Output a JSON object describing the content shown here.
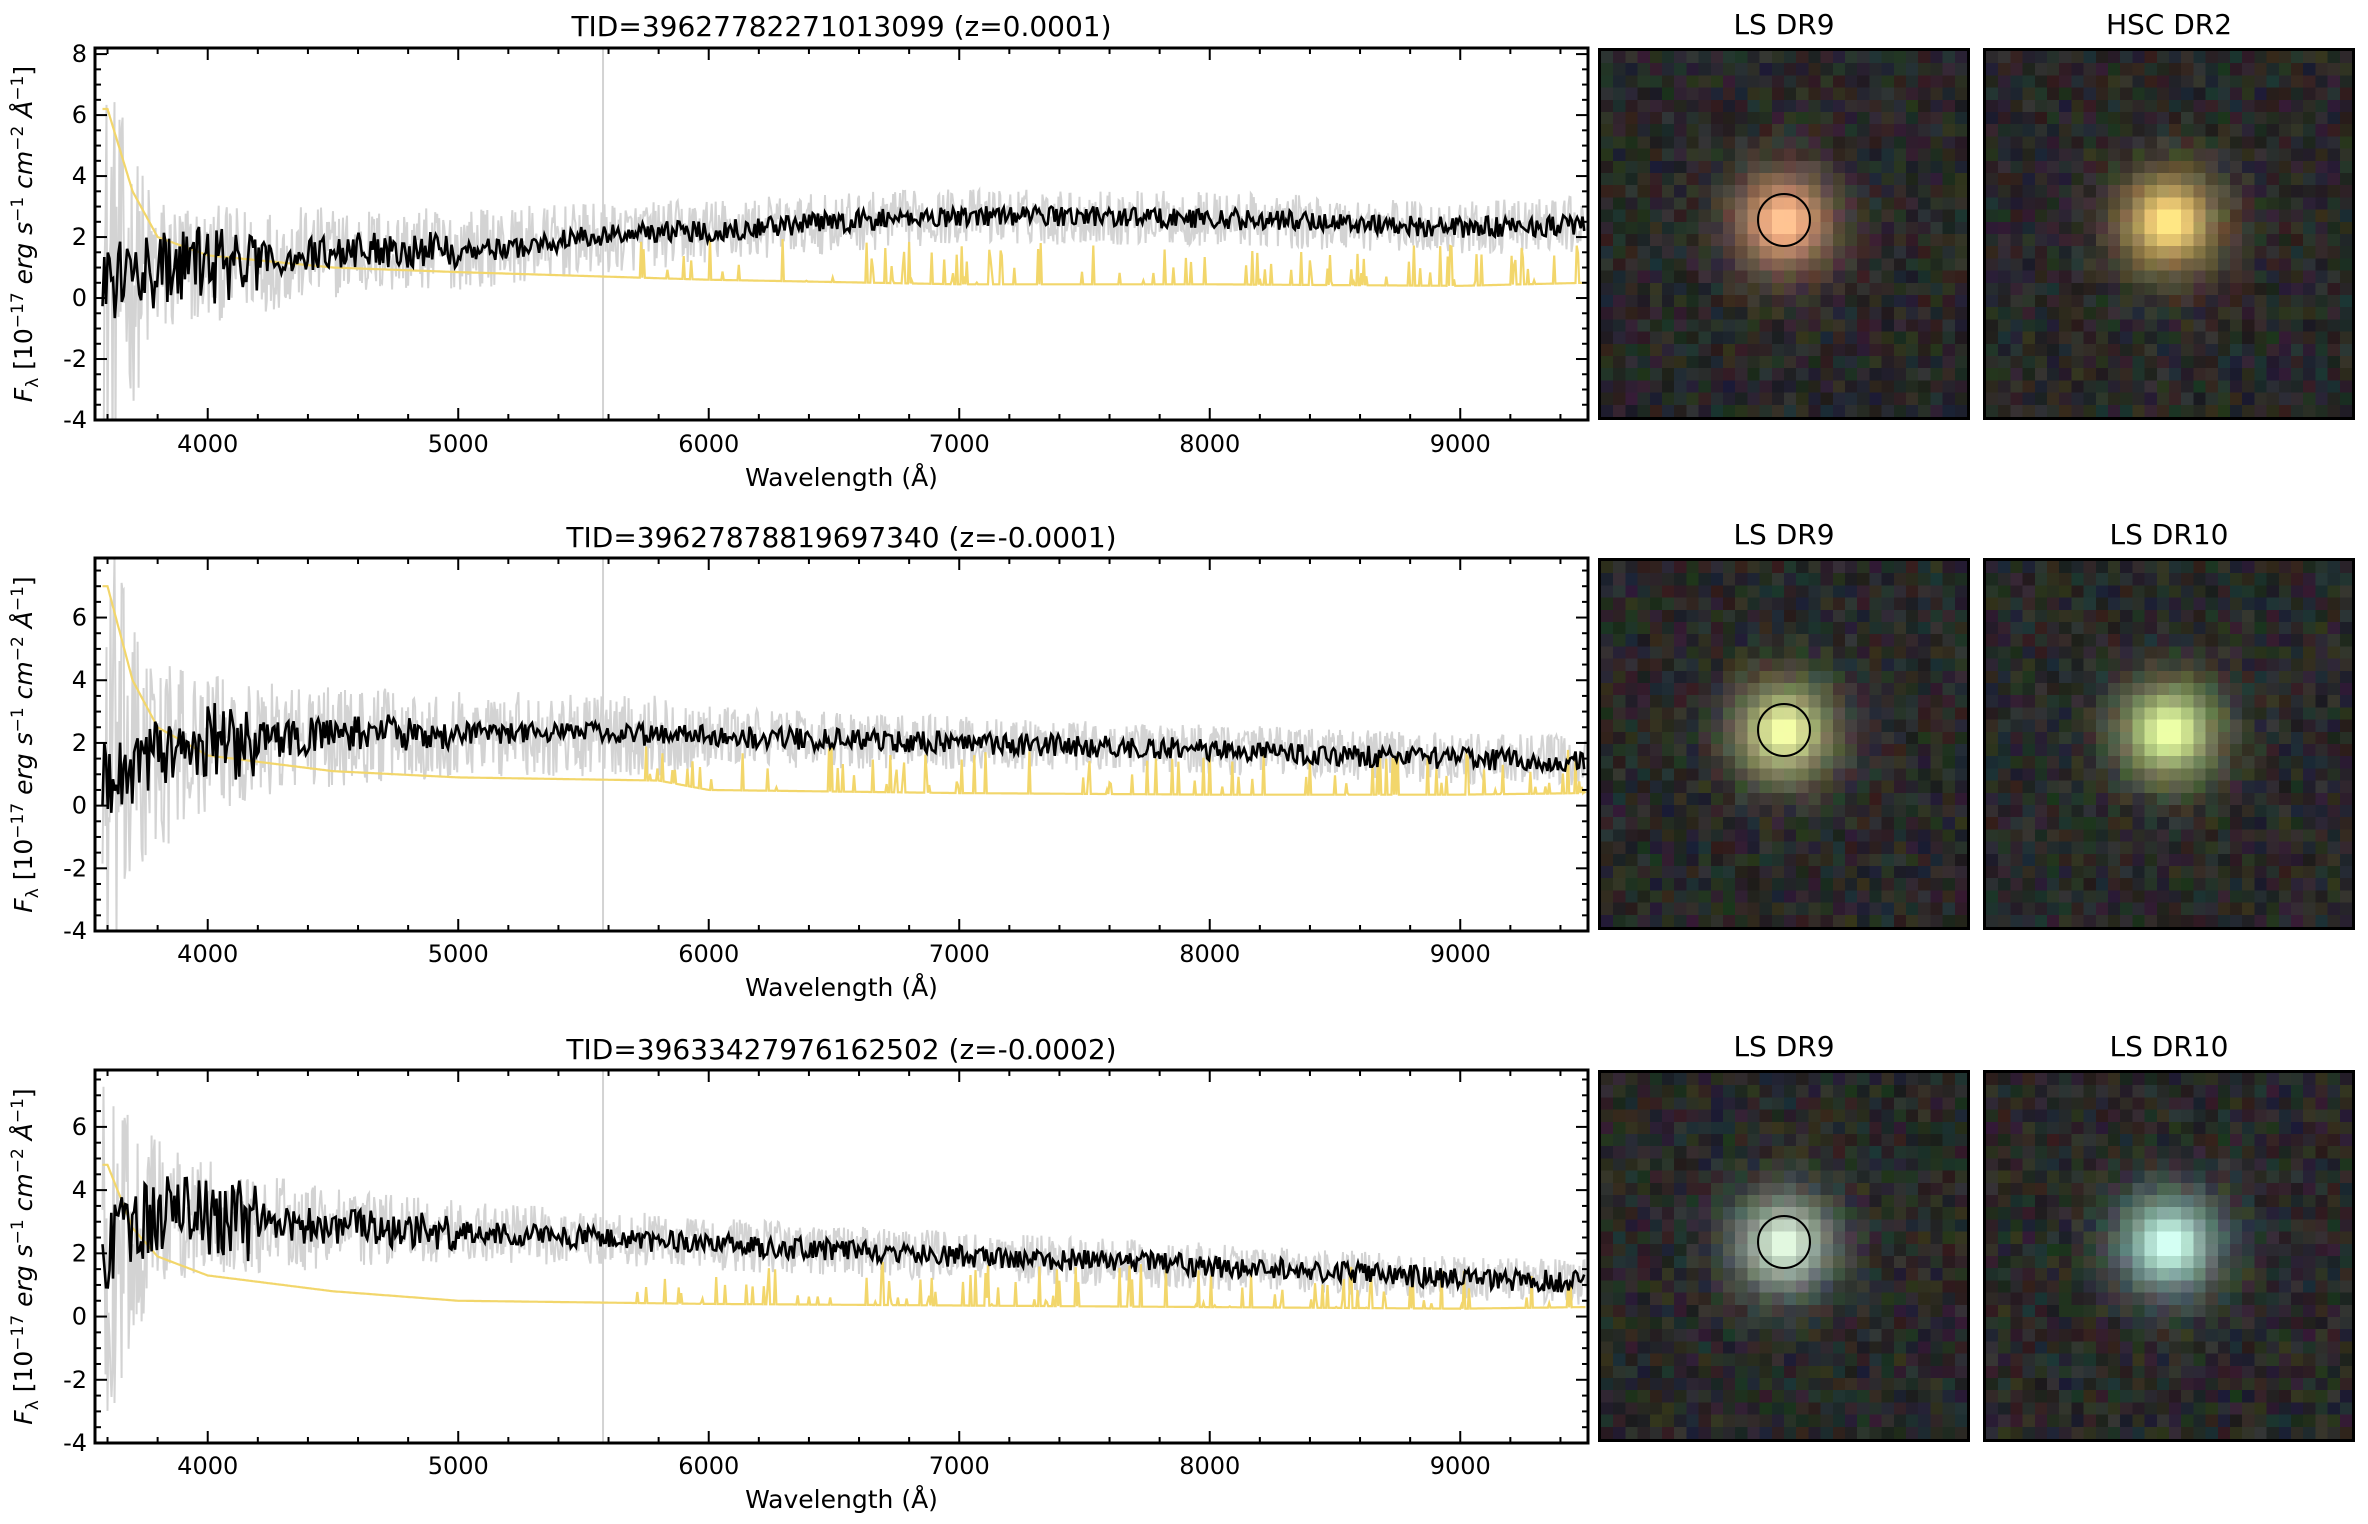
{
  "figure": {
    "xlabel": "Wavelength (Å)",
    "ylabel_parts": {
      "flux_symbol": "F",
      "flux_subscript": "λ",
      "unit_open": "[10",
      "unit_exp": "−17",
      "unit_mid": " erg s",
      "s_exp": "−1",
      "unit_cm": " cm",
      "cm_exp": "−2",
      "unit_ang": " Å",
      "ang_exp": "−1",
      "unit_close": "]"
    }
  },
  "colors": {
    "spectrum": "#000000",
    "raw_flux": "#d3d3d3",
    "noise": "#f2d66b",
    "axes": "#000000"
  },
  "panels": [
    {
      "title": "TID=39627782271013099 (z=0.0001)",
      "cutouts": [
        {
          "title": "LS DR9",
          "aperture": true,
          "color": "#e8a27a",
          "core": "#f4c38e"
        },
        {
          "title": "HSC DR2",
          "aperture": false,
          "color": "#e6c16a",
          "core": "#fae08c"
        }
      ]
    },
    {
      "title": "TID=39627878819697340 (z=-0.0001)",
      "cutouts": [
        {
          "title": "LS DR9",
          "aperture": true,
          "color": "#cfd98c",
          "core": "#e4e6a2"
        },
        {
          "title": "LS DR10",
          "aperture": false,
          "color": "#c8e08a",
          "core": "#dff0a6"
        }
      ]
    },
    {
      "title": "TID=39633427976162502 (z=-0.0002)",
      "cutouts": [
        {
          "title": "LS DR9",
          "aperture": true,
          "color": "#b9d4c4",
          "core": "#e8e2bc"
        },
        {
          "title": "LS DR10",
          "aperture": false,
          "color": "#a6e0d6",
          "core": "#f2f2c8"
        }
      ]
    }
  ],
  "chart_data": [
    {
      "type": "line",
      "title": "TID=39627782271013099 (z=0.0001)",
      "xlabel": "Wavelength (Å)",
      "ylabel": "Fλ [10^-17 erg s^-1 cm^-2 Å^-1]",
      "xlim": [
        3550,
        9510
      ],
      "ylim": [
        -4,
        8.2
      ],
      "xticks": [
        4000,
        5000,
        6000,
        7000,
        8000,
        9000
      ],
      "yticks": [
        -4,
        -2,
        0,
        2,
        4,
        6,
        8
      ],
      "series": [
        {
          "role": "spectrum",
          "color": "#000000",
          "x": [
            3600,
            3700,
            3800,
            3900,
            4000,
            4200,
            4400,
            4600,
            5000,
            5200,
            5500,
            5800,
            6000,
            6500,
            7000,
            7500,
            8000,
            8500,
            9000,
            9500
          ],
          "y": [
            0.5,
            0.8,
            0.9,
            1.0,
            1.1,
            1.2,
            1.4,
            1.6,
            1.6,
            1.6,
            2.0,
            2.2,
            2.2,
            2.5,
            2.7,
            2.7,
            2.6,
            2.5,
            2.3,
            2.4
          ]
        },
        {
          "role": "raw flux",
          "color": "#d3d3d3",
          "x": [
            3600,
            3800,
            4000,
            4500,
            5000,
            6000,
            7000,
            8000,
            9000,
            9500
          ],
          "y": [
            0.5,
            0.9,
            1.1,
            1.5,
            1.6,
            2.2,
            2.7,
            2.6,
            2.3,
            2.4
          ]
        },
        {
          "role": "noise",
          "color": "#f2d66b",
          "x": [
            3600,
            3700,
            3800,
            4000,
            4500,
            5000,
            6000,
            7000,
            8000,
            9000,
            9500
          ],
          "y": [
            6.2,
            3.5,
            2.0,
            1.4,
            1.0,
            0.85,
            0.6,
            0.45,
            0.45,
            0.4,
            0.5
          ]
        }
      ]
    },
    {
      "type": "line",
      "title": "TID=39627878819697340 (z=-0.0001)",
      "xlabel": "Wavelength (Å)",
      "ylabel": "Fλ [10^-17 erg s^-1 cm^-2 Å^-1]",
      "xlim": [
        3550,
        9510
      ],
      "ylim": [
        -4,
        7.9
      ],
      "xticks": [
        4000,
        5000,
        6000,
        7000,
        8000,
        9000
      ],
      "yticks": [
        -4,
        -2,
        0,
        2,
        4,
        6
      ],
      "series": [
        {
          "role": "spectrum",
          "color": "#000000",
          "x": [
            3600,
            3700,
            3800,
            3900,
            4000,
            4200,
            4400,
            4600,
            5000,
            5500,
            6000,
            6500,
            7000,
            7500,
            8000,
            8500,
            9000,
            9500
          ],
          "y": [
            1.0,
            1.2,
            1.6,
            1.8,
            2.0,
            2.1,
            2.2,
            2.3,
            2.3,
            2.3,
            2.2,
            2.1,
            2.0,
            1.9,
            1.8,
            1.6,
            1.5,
            1.4
          ]
        },
        {
          "role": "raw flux",
          "color": "#d3d3d3",
          "x": [
            3600,
            3800,
            4000,
            4500,
            5000,
            6000,
            7000,
            8000,
            9000,
            9500
          ],
          "y": [
            1.0,
            1.6,
            2.0,
            2.2,
            2.3,
            2.2,
            2.0,
            1.8,
            1.5,
            1.4
          ]
        },
        {
          "role": "noise",
          "color": "#f2d66b",
          "x": [
            3600,
            3700,
            3800,
            4000,
            4500,
            5000,
            5800,
            6000,
            7000,
            8000,
            9000,
            9500
          ],
          "y": [
            7.0,
            4.0,
            2.5,
            1.6,
            1.1,
            0.9,
            0.8,
            0.5,
            0.4,
            0.35,
            0.35,
            0.4
          ]
        }
      ]
    },
    {
      "type": "line",
      "title": "TID=39633427976162502 (z=-0.0002)",
      "xlabel": "Wavelength (Å)",
      "ylabel": "Fλ [10^-17 erg s^-1 cm^-2 Å^-1]",
      "xlim": [
        3550,
        9510
      ],
      "ylim": [
        -4,
        7.8
      ],
      "xticks": [
        4000,
        5000,
        6000,
        7000,
        8000,
        9000
      ],
      "yticks": [
        -4,
        -2,
        0,
        2,
        4,
        6
      ],
      "series": [
        {
          "role": "spectrum",
          "color": "#000000",
          "x": [
            3600,
            3700,
            3800,
            3900,
            4000,
            4200,
            4500,
            5000,
            5500,
            6000,
            6500,
            7000,
            7500,
            8000,
            8500,
            9000,
            9500
          ],
          "y": [
            2.0,
            3.0,
            3.3,
            3.2,
            3.1,
            3.0,
            2.8,
            2.7,
            2.5,
            2.3,
            2.1,
            1.9,
            1.8,
            1.6,
            1.4,
            1.2,
            1.1
          ]
        },
        {
          "role": "raw flux",
          "color": "#d3d3d3",
          "x": [
            3600,
            3800,
            4000,
            4500,
            5000,
            6000,
            7000,
            8000,
            9000,
            9500
          ],
          "y": [
            2.0,
            3.3,
            3.1,
            2.8,
            2.7,
            2.3,
            1.9,
            1.6,
            1.2,
            1.1
          ]
        },
        {
          "role": "noise",
          "color": "#f2d66b",
          "x": [
            3600,
            3700,
            3800,
            4000,
            4500,
            5000,
            6000,
            7000,
            8000,
            9000,
            9500
          ],
          "y": [
            4.8,
            2.8,
            1.9,
            1.3,
            0.8,
            0.5,
            0.4,
            0.35,
            0.3,
            0.25,
            0.3
          ]
        }
      ]
    }
  ]
}
